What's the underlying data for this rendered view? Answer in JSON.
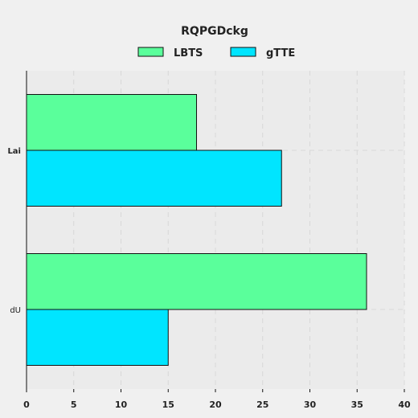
{
  "chart_data": {
    "type": "bar",
    "orientation": "horizontal",
    "title": "RQPGDckg",
    "categories": [
      "Lai",
      "dU"
    ],
    "series": [
      {
        "name": "LBTS",
        "values": [
          18,
          36
        ],
        "color": "#5aff9b"
      },
      {
        "name": "gTTE",
        "values": [
          27,
          15
        ],
        "color": "#00e5ff"
      }
    ],
    "xlim": [
      0,
      40
    ],
    "x_ticks": [
      0,
      5,
      10,
      15,
      20,
      25,
      30,
      35,
      40
    ],
    "xlabel": "",
    "ylabel": "",
    "grid": true,
    "legend_position": "top"
  },
  "colors": {
    "background": "#f0f0f0",
    "plot_background": "#ebebeb",
    "bar_stroke": "#111111",
    "grid": "#d8d8d8"
  }
}
